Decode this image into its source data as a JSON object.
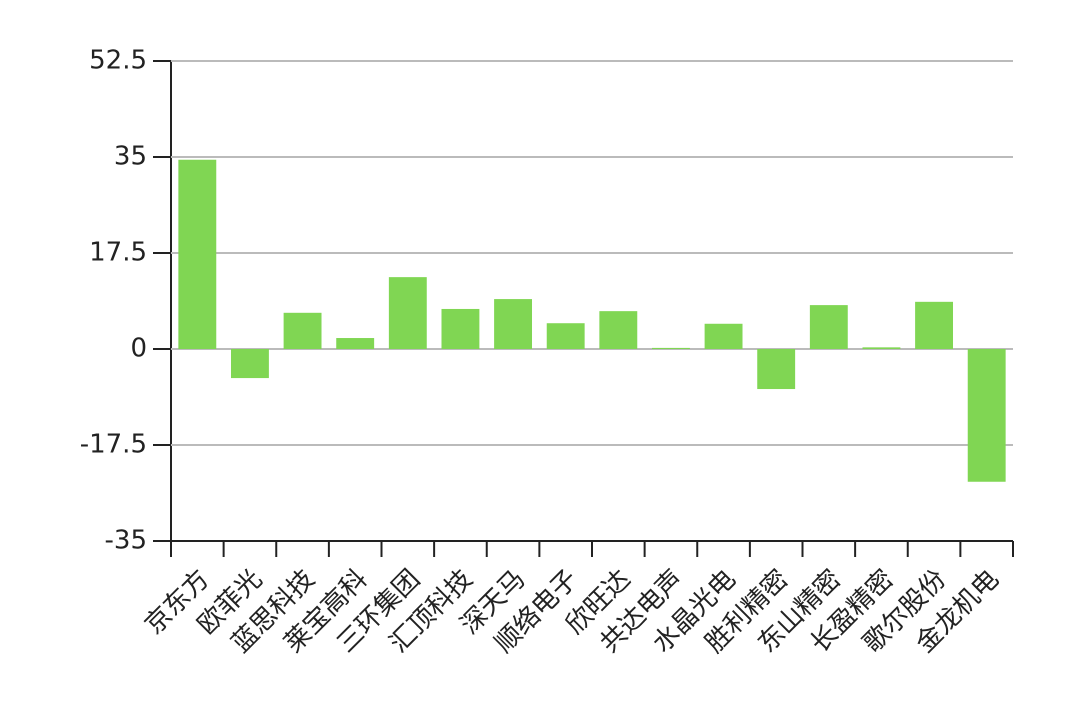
{
  "chart_data": {
    "type": "bar",
    "categories": [
      "京东方",
      "欧菲光",
      "蓝思科技",
      "莱宝高科",
      "三环集团",
      "汇顶科技",
      "深天马",
      "顺络电子",
      "欣旺达",
      "共达电声",
      "水晶光电",
      "胜利精密",
      "东山精密",
      "长盈精密",
      "歌尔股份",
      "金龙机电"
    ],
    "values": [
      34.5,
      -5.3,
      6.6,
      2.0,
      13.1,
      7.3,
      9.1,
      4.7,
      6.9,
      0.2,
      4.6,
      -7.3,
      8.0,
      0.3,
      8.6,
      -24.2
    ],
    "color": "#80d653",
    "ylim": [
      -35,
      52.5
    ],
    "yticks": [
      -35,
      -17.5,
      0,
      17.5,
      35,
      52.5
    ],
    "grid": true
  }
}
